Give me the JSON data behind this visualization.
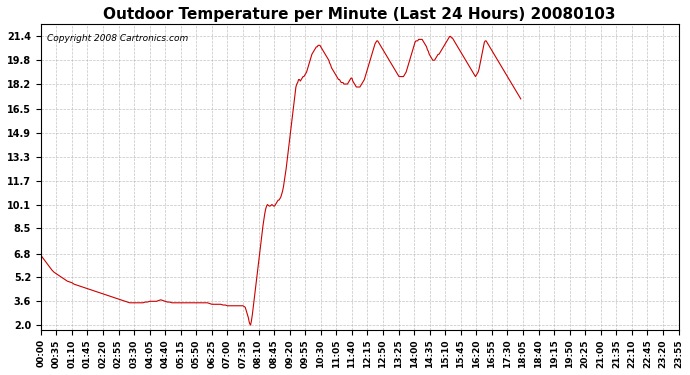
{
  "title": "Outdoor Temperature per Minute (Last 24 Hours) 20080103",
  "copyright_text": "Copyright 2008 Cartronics.com",
  "line_color": "#cc0000",
  "background_color": "#ffffff",
  "plot_bg_color": "#ffffff",
  "grid_color": "#aaaaaa",
  "yticks": [
    2.0,
    3.6,
    5.2,
    6.8,
    8.5,
    10.1,
    11.7,
    13.3,
    14.9,
    16.5,
    18.2,
    19.8,
    21.4
  ],
  "ylim": [
    1.7,
    22.2
  ],
  "xtick_labels": [
    "00:00",
    "00:35",
    "01:10",
    "01:45",
    "02:20",
    "02:55",
    "03:30",
    "04:05",
    "04:40",
    "05:15",
    "05:50",
    "06:25",
    "07:00",
    "07:35",
    "08:10",
    "08:45",
    "09:20",
    "09:55",
    "10:30",
    "11:05",
    "11:40",
    "12:15",
    "12:50",
    "13:25",
    "14:00",
    "14:35",
    "15:10",
    "15:45",
    "16:20",
    "16:55",
    "17:30",
    "18:05",
    "18:40",
    "19:15",
    "19:50",
    "20:25",
    "21:00",
    "21:35",
    "22:10",
    "22:45",
    "23:20",
    "23:55"
  ],
  "temp_data": [
    [
      0,
      6.7
    ],
    [
      5,
      6.5
    ],
    [
      10,
      6.3
    ],
    [
      15,
      6.1
    ],
    [
      20,
      5.9
    ],
    [
      25,
      5.7
    ],
    [
      30,
      5.55
    ],
    [
      35,
      5.45
    ],
    [
      40,
      5.35
    ],
    [
      45,
      5.25
    ],
    [
      50,
      5.15
    ],
    [
      55,
      5.05
    ],
    [
      60,
      4.95
    ],
    [
      65,
      4.9
    ],
    [
      70,
      4.85
    ],
    [
      75,
      4.75
    ],
    [
      80,
      4.7
    ],
    [
      85,
      4.65
    ],
    [
      90,
      4.6
    ],
    [
      95,
      4.55
    ],
    [
      100,
      4.5
    ],
    [
      105,
      4.45
    ],
    [
      110,
      4.4
    ],
    [
      115,
      4.35
    ],
    [
      120,
      4.3
    ],
    [
      125,
      4.25
    ],
    [
      130,
      4.2
    ],
    [
      135,
      4.15
    ],
    [
      140,
      4.1
    ],
    [
      145,
      4.05
    ],
    [
      150,
      4.0
    ],
    [
      155,
      3.95
    ],
    [
      160,
      3.9
    ],
    [
      165,
      3.85
    ],
    [
      170,
      3.8
    ],
    [
      175,
      3.75
    ],
    [
      180,
      3.7
    ],
    [
      185,
      3.65
    ],
    [
      190,
      3.6
    ],
    [
      195,
      3.55
    ],
    [
      200,
      3.5
    ],
    [
      205,
      3.5
    ],
    [
      210,
      3.5
    ],
    [
      215,
      3.5
    ],
    [
      220,
      3.5
    ],
    [
      225,
      3.5
    ],
    [
      230,
      3.5
    ],
    [
      235,
      3.55
    ],
    [
      240,
      3.55
    ],
    [
      245,
      3.6
    ],
    [
      250,
      3.6
    ],
    [
      255,
      3.6
    ],
    [
      260,
      3.6
    ],
    [
      265,
      3.65
    ],
    [
      270,
      3.7
    ],
    [
      275,
      3.65
    ],
    [
      280,
      3.6
    ],
    [
      285,
      3.55
    ],
    [
      290,
      3.55
    ],
    [
      295,
      3.5
    ],
    [
      300,
      3.5
    ],
    [
      305,
      3.5
    ],
    [
      310,
      3.5
    ],
    [
      315,
      3.5
    ],
    [
      320,
      3.5
    ],
    [
      325,
      3.5
    ],
    [
      330,
      3.5
    ],
    [
      335,
      3.5
    ],
    [
      340,
      3.5
    ],
    [
      345,
      3.5
    ],
    [
      350,
      3.5
    ],
    [
      355,
      3.5
    ],
    [
      360,
      3.5
    ],
    [
      365,
      3.5
    ],
    [
      370,
      3.5
    ],
    [
      375,
      3.5
    ],
    [
      380,
      3.45
    ],
    [
      385,
      3.4
    ],
    [
      390,
      3.4
    ],
    [
      395,
      3.4
    ],
    [
      400,
      3.4
    ],
    [
      405,
      3.4
    ],
    [
      410,
      3.35
    ],
    [
      415,
      3.35
    ],
    [
      420,
      3.3
    ],
    [
      425,
      3.3
    ],
    [
      430,
      3.3
    ],
    [
      435,
      3.3
    ],
    [
      440,
      3.3
    ],
    [
      445,
      3.3
    ],
    [
      450,
      3.3
    ],
    [
      455,
      3.3
    ],
    [
      460,
      3.2
    ],
    [
      461,
      3.1
    ],
    [
      462,
      3.0
    ],
    [
      463,
      2.9
    ],
    [
      464,
      2.8
    ],
    [
      465,
      2.7
    ],
    [
      466,
      2.6
    ],
    [
      467,
      2.5
    ],
    [
      468,
      2.35
    ],
    [
      469,
      2.2
    ],
    [
      470,
      2.1
    ],
    [
      471,
      2.05
    ],
    [
      472,
      2.0
    ],
    [
      474,
      2.3
    ],
    [
      476,
      2.7
    ],
    [
      478,
      3.2
    ],
    [
      480,
      3.7
    ],
    [
      482,
      4.2
    ],
    [
      484,
      4.7
    ],
    [
      486,
      5.2
    ],
    [
      488,
      5.7
    ],
    [
      490,
      6.2
    ],
    [
      492,
      6.7
    ],
    [
      494,
      7.2
    ],
    [
      496,
      7.7
    ],
    [
      498,
      8.2
    ],
    [
      500,
      8.7
    ],
    [
      502,
      9.1
    ],
    [
      504,
      9.5
    ],
    [
      506,
      9.8
    ],
    [
      508,
      10.0
    ],
    [
      510,
      10.1
    ],
    [
      512,
      10.05
    ],
    [
      514,
      10.0
    ],
    [
      516,
      10.0
    ],
    [
      518,
      10.05
    ],
    [
      520,
      10.1
    ],
    [
      522,
      10.05
    ],
    [
      524,
      10.0
    ],
    [
      526,
      10.0
    ],
    [
      528,
      10.1
    ],
    [
      530,
      10.2
    ],
    [
      532,
      10.3
    ],
    [
      534,
      10.4
    ],
    [
      536,
      10.4
    ],
    [
      538,
      10.5
    ],
    [
      540,
      10.6
    ],
    [
      542,
      10.8
    ],
    [
      544,
      11.0
    ],
    [
      546,
      11.3
    ],
    [
      548,
      11.7
    ],
    [
      550,
      12.1
    ],
    [
      552,
      12.5
    ],
    [
      554,
      13.0
    ],
    [
      556,
      13.5
    ],
    [
      558,
      14.0
    ],
    [
      560,
      14.5
    ],
    [
      562,
      15.0
    ],
    [
      564,
      15.5
    ],
    [
      566,
      16.0
    ],
    [
      568,
      16.5
    ],
    [
      570,
      17.0
    ],
    [
      572,
      17.5
    ],
    [
      574,
      18.0
    ],
    [
      576,
      18.2
    ],
    [
      578,
      18.3
    ],
    [
      580,
      18.5
    ],
    [
      582,
      18.5
    ],
    [
      584,
      18.4
    ],
    [
      586,
      18.5
    ],
    [
      588,
      18.6
    ],
    [
      590,
      18.7
    ],
    [
      592,
      18.7
    ],
    [
      594,
      18.8
    ],
    [
      596,
      18.9
    ],
    [
      598,
      19.0
    ],
    [
      600,
      19.2
    ],
    [
      602,
      19.4
    ],
    [
      604,
      19.6
    ],
    [
      606,
      19.8
    ],
    [
      608,
      20.0
    ],
    [
      610,
      20.2
    ],
    [
      612,
      20.3
    ],
    [
      614,
      20.4
    ],
    [
      616,
      20.5
    ],
    [
      618,
      20.6
    ],
    [
      620,
      20.7
    ],
    [
      622,
      20.7
    ],
    [
      624,
      20.8
    ],
    [
      626,
      20.8
    ],
    [
      628,
      20.8
    ],
    [
      630,
      20.7
    ],
    [
      632,
      20.6
    ],
    [
      634,
      20.5
    ],
    [
      636,
      20.4
    ],
    [
      638,
      20.3
    ],
    [
      640,
      20.2
    ],
    [
      642,
      20.1
    ],
    [
      644,
      20.0
    ],
    [
      646,
      19.9
    ],
    [
      648,
      19.8
    ],
    [
      650,
      19.6
    ],
    [
      652,
      19.5
    ],
    [
      654,
      19.3
    ],
    [
      656,
      19.2
    ],
    [
      658,
      19.1
    ],
    [
      660,
      19.0
    ],
    [
      662,
      18.9
    ],
    [
      664,
      18.8
    ],
    [
      666,
      18.7
    ],
    [
      668,
      18.6
    ],
    [
      670,
      18.5
    ],
    [
      672,
      18.5
    ],
    [
      674,
      18.4
    ],
    [
      676,
      18.3
    ],
    [
      678,
      18.3
    ],
    [
      680,
      18.3
    ],
    [
      682,
      18.2
    ],
    [
      684,
      18.2
    ],
    [
      686,
      18.2
    ],
    [
      688,
      18.2
    ],
    [
      690,
      18.2
    ],
    [
      692,
      18.3
    ],
    [
      694,
      18.4
    ],
    [
      696,
      18.5
    ],
    [
      698,
      18.6
    ],
    [
      700,
      18.6
    ],
    [
      702,
      18.4
    ],
    [
      704,
      18.3
    ],
    [
      706,
      18.2
    ],
    [
      708,
      18.1
    ],
    [
      710,
      18.0
    ],
    [
      712,
      18.0
    ],
    [
      714,
      18.0
    ],
    [
      716,
      18.0
    ],
    [
      718,
      18.0
    ],
    [
      720,
      18.1
    ],
    [
      722,
      18.2
    ],
    [
      724,
      18.3
    ],
    [
      726,
      18.4
    ],
    [
      728,
      18.5
    ],
    [
      730,
      18.7
    ],
    [
      732,
      18.9
    ],
    [
      734,
      19.1
    ],
    [
      736,
      19.3
    ],
    [
      738,
      19.5
    ],
    [
      740,
      19.7
    ],
    [
      742,
      19.9
    ],
    [
      744,
      20.1
    ],
    [
      746,
      20.3
    ],
    [
      748,
      20.5
    ],
    [
      750,
      20.7
    ],
    [
      752,
      20.9
    ],
    [
      754,
      21.0
    ],
    [
      756,
      21.1
    ],
    [
      758,
      21.1
    ],
    [
      760,
      21.0
    ],
    [
      762,
      20.9
    ],
    [
      764,
      20.8
    ],
    [
      766,
      20.7
    ],
    [
      768,
      20.6
    ],
    [
      770,
      20.5
    ],
    [
      772,
      20.4
    ],
    [
      774,
      20.3
    ],
    [
      776,
      20.2
    ],
    [
      778,
      20.1
    ],
    [
      780,
      20.0
    ],
    [
      782,
      19.9
    ],
    [
      784,
      19.8
    ],
    [
      786,
      19.7
    ],
    [
      788,
      19.6
    ],
    [
      790,
      19.5
    ],
    [
      792,
      19.4
    ],
    [
      794,
      19.3
    ],
    [
      796,
      19.2
    ],
    [
      798,
      19.1
    ],
    [
      800,
      19.0
    ],
    [
      802,
      18.9
    ],
    [
      804,
      18.8
    ],
    [
      806,
      18.7
    ],
    [
      808,
      18.7
    ],
    [
      810,
      18.7
    ],
    [
      812,
      18.7
    ],
    [
      814,
      18.7
    ],
    [
      816,
      18.7
    ],
    [
      818,
      18.8
    ],
    [
      820,
      18.9
    ],
    [
      822,
      19.0
    ],
    [
      824,
      19.2
    ],
    [
      826,
      19.4
    ],
    [
      828,
      19.6
    ],
    [
      830,
      19.8
    ],
    [
      832,
      20.0
    ],
    [
      834,
      20.2
    ],
    [
      836,
      20.4
    ],
    [
      838,
      20.6
    ],
    [
      840,
      20.8
    ],
    [
      842,
      21.0
    ],
    [
      844,
      21.1
    ],
    [
      846,
      21.1
    ],
    [
      848,
      21.1
    ],
    [
      850,
      21.2
    ],
    [
      852,
      21.2
    ],
    [
      854,
      21.2
    ],
    [
      856,
      21.2
    ],
    [
      858,
      21.2
    ],
    [
      860,
      21.1
    ],
    [
      862,
      21.0
    ],
    [
      864,
      20.9
    ],
    [
      866,
      20.8
    ],
    [
      868,
      20.7
    ],
    [
      870,
      20.5
    ],
    [
      872,
      20.4
    ],
    [
      874,
      20.2
    ],
    [
      876,
      20.1
    ],
    [
      878,
      20.0
    ],
    [
      880,
      19.9
    ],
    [
      882,
      19.8
    ],
    [
      884,
      19.8
    ],
    [
      886,
      19.8
    ],
    [
      888,
      19.9
    ],
    [
      890,
      20.0
    ],
    [
      892,
      20.1
    ],
    [
      894,
      20.2
    ],
    [
      896,
      20.2
    ],
    [
      898,
      20.3
    ],
    [
      900,
      20.4
    ],
    [
      902,
      20.5
    ],
    [
      904,
      20.6
    ],
    [
      906,
      20.7
    ],
    [
      908,
      20.8
    ],
    [
      910,
      20.9
    ],
    [
      912,
      21.0
    ],
    [
      914,
      21.1
    ],
    [
      916,
      21.2
    ],
    [
      918,
      21.3
    ],
    [
      920,
      21.4
    ],
    [
      922,
      21.4
    ],
    [
      924,
      21.3
    ],
    [
      926,
      21.3
    ],
    [
      928,
      21.2
    ],
    [
      930,
      21.1
    ],
    [
      932,
      21.0
    ],
    [
      934,
      20.9
    ],
    [
      936,
      20.8
    ],
    [
      938,
      20.7
    ],
    [
      940,
      20.6
    ],
    [
      942,
      20.5
    ],
    [
      944,
      20.4
    ],
    [
      946,
      20.3
    ],
    [
      948,
      20.2
    ],
    [
      950,
      20.1
    ],
    [
      952,
      20.0
    ],
    [
      954,
      19.9
    ],
    [
      956,
      19.8
    ],
    [
      958,
      19.7
    ],
    [
      960,
      19.6
    ],
    [
      962,
      19.5
    ],
    [
      964,
      19.4
    ],
    [
      966,
      19.3
    ],
    [
      968,
      19.2
    ],
    [
      970,
      19.1
    ],
    [
      972,
      19.0
    ],
    [
      974,
      18.9
    ],
    [
      976,
      18.8
    ],
    [
      978,
      18.7
    ],
    [
      980,
      18.8
    ],
    [
      982,
      18.9
    ],
    [
      984,
      19.0
    ],
    [
      986,
      19.2
    ],
    [
      988,
      19.5
    ],
    [
      990,
      19.8
    ],
    [
      992,
      20.1
    ],
    [
      994,
      20.4
    ],
    [
      996,
      20.7
    ],
    [
      998,
      21.0
    ],
    [
      1000,
      21.1
    ],
    [
      1002,
      21.1
    ],
    [
      1004,
      21.0
    ],
    [
      1006,
      20.9
    ],
    [
      1008,
      20.8
    ],
    [
      1010,
      20.7
    ],
    [
      1012,
      20.6
    ],
    [
      1014,
      20.5
    ],
    [
      1016,
      20.4
    ],
    [
      1018,
      20.3
    ],
    [
      1020,
      20.2
    ],
    [
      1022,
      20.1
    ],
    [
      1024,
      20.0
    ],
    [
      1026,
      19.9
    ],
    [
      1028,
      19.8
    ],
    [
      1030,
      19.7
    ],
    [
      1032,
      19.6
    ],
    [
      1034,
      19.5
    ],
    [
      1036,
      19.4
    ],
    [
      1038,
      19.3
    ],
    [
      1040,
      19.2
    ],
    [
      1042,
      19.1
    ],
    [
      1044,
      19.0
    ],
    [
      1046,
      18.9
    ],
    [
      1048,
      18.8
    ],
    [
      1050,
      18.7
    ],
    [
      1052,
      18.6
    ],
    [
      1054,
      18.5
    ],
    [
      1056,
      18.4
    ],
    [
      1058,
      18.3
    ],
    [
      1060,
      18.2
    ],
    [
      1062,
      18.1
    ],
    [
      1064,
      18.0
    ],
    [
      1066,
      17.9
    ],
    [
      1068,
      17.8
    ],
    [
      1070,
      17.7
    ],
    [
      1072,
      17.6
    ],
    [
      1074,
      17.5
    ],
    [
      1076,
      17.4
    ],
    [
      1078,
      17.3
    ],
    [
      1080,
      17.2
    ]
  ]
}
